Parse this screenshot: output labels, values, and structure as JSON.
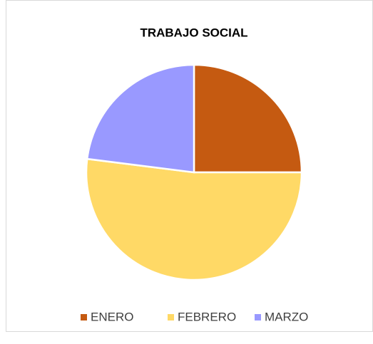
{
  "chart_data": {
    "type": "pie",
    "title": "TRABAJO SOCIAL",
    "categories": [
      "ENERO",
      "FEBRERO",
      "MARZO"
    ],
    "values": [
      25,
      52,
      23
    ],
    "colors": [
      "#c55a11",
      "#ffd966",
      "#9999ff"
    ],
    "legend": "bottom"
  }
}
